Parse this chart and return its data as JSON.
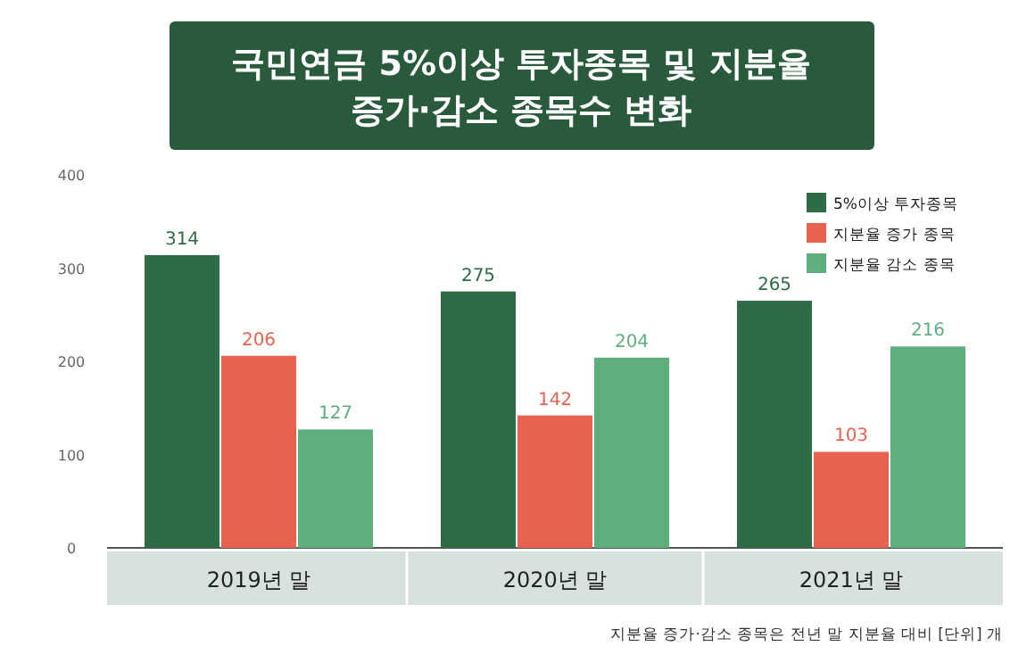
{
  "chart_data": {
    "type": "bar",
    "title": "국민연금 5%이상 투자종목 및 지분율\n증가·감소 종목수 변화",
    "categories": [
      "2019년 말",
      "2020년 말",
      "2021년 말"
    ],
    "series": [
      {
        "name": "5%이상 투자종목",
        "color": "#2f6b47",
        "values": [
          314,
          275,
          265
        ]
      },
      {
        "name": "지분율 증가 종목",
        "color": "#e8634f",
        "values": [
          206,
          142,
          103
        ]
      },
      {
        "name": "지분율 감소 종목",
        "color": "#5fae7e",
        "values": [
          127,
          204,
          216
        ]
      }
    ],
    "ylim": [
      0,
      400
    ],
    "yticks": [
      0,
      100,
      200,
      300,
      400
    ],
    "legend": "top right",
    "data_labels": true,
    "annotations": [
      "지분율 증가·감소 종목은 전년 말 지분율 대비 [단위] 개"
    ]
  }
}
